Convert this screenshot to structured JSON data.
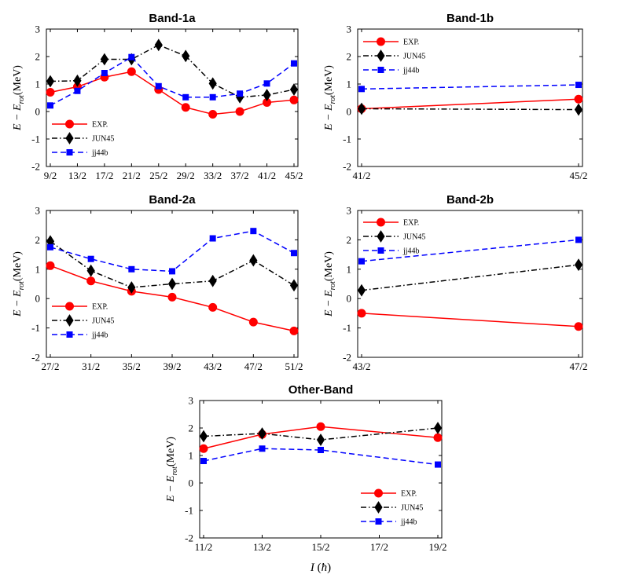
{
  "colors": {
    "exp": "#ff0000",
    "jun45": "#000000",
    "jj44b": "#0000ff"
  },
  "legend": {
    "exp": "EXP.",
    "jun45": "JUN45",
    "jj44b": "jj44b"
  },
  "y_axis_label": "E − E_rot (MeV)",
  "x_axis_label": "I (ħ)",
  "chart_data": [
    {
      "id": "band1a",
      "type": "line",
      "title": "Band-1a",
      "categories": [
        "9/2",
        "13/2",
        "17/2",
        "21/2",
        "25/2",
        "29/2",
        "33/2",
        "37/2",
        "41/2",
        "45/2"
      ],
      "ylim": [
        -2,
        3
      ],
      "yticks": [
        -2,
        -1,
        0,
        1,
        2,
        3
      ],
      "series": [
        {
          "name": "EXP.",
          "values": [
            0.7,
            0.9,
            1.25,
            1.45,
            0.8,
            0.15,
            -0.1,
            0.0,
            0.33,
            0.42
          ]
        },
        {
          "name": "JUN45",
          "values": [
            1.1,
            1.12,
            1.9,
            1.9,
            2.42,
            2.02,
            1.02,
            0.52,
            0.6,
            0.8
          ]
        },
        {
          "name": "jj44b",
          "values": [
            0.22,
            0.75,
            1.4,
            1.98,
            0.92,
            0.52,
            0.52,
            0.65,
            1.02,
            1.75
          ]
        }
      ],
      "legend_position": "bottom-left"
    },
    {
      "id": "band1b",
      "type": "line",
      "title": "Band-1b",
      "categories": [
        "41/2",
        "45/2"
      ],
      "ylim": [
        -2,
        3
      ],
      "yticks": [
        -2,
        -1,
        0,
        1,
        2,
        3
      ],
      "series": [
        {
          "name": "EXP.",
          "values": [
            0.1,
            0.45
          ]
        },
        {
          "name": "JUN45",
          "values": [
            0.1,
            0.07
          ]
        },
        {
          "name": "jj44b",
          "values": [
            0.82,
            0.97
          ]
        }
      ],
      "legend_position": "top-left"
    },
    {
      "id": "band2a",
      "type": "line",
      "title": "Band-2a",
      "categories": [
        "27/2",
        "31/2",
        "35/2",
        "39/2",
        "43/2",
        "47/2",
        "51/2"
      ],
      "ylim": [
        -2,
        3
      ],
      "yticks": [
        -2,
        -1,
        0,
        1,
        2,
        3
      ],
      "series": [
        {
          "name": "EXP.",
          "values": [
            1.12,
            0.6,
            0.25,
            0.05,
            -0.3,
            -0.8,
            -1.1
          ]
        },
        {
          "name": "JUN45",
          "values": [
            1.95,
            0.95,
            0.38,
            0.5,
            0.6,
            1.3,
            0.45
          ]
        },
        {
          "name": "jj44b",
          "values": [
            1.75,
            1.35,
            1.0,
            0.93,
            2.05,
            2.3,
            1.55
          ]
        }
      ],
      "legend_position": "bottom-left"
    },
    {
      "id": "band2b",
      "type": "line",
      "title": "Band-2b",
      "categories": [
        "43/2",
        "47/2"
      ],
      "ylim": [
        -2,
        3
      ],
      "yticks": [
        -2,
        -1,
        0,
        1,
        2,
        3
      ],
      "series": [
        {
          "name": "EXP.",
          "values": [
            -0.5,
            -0.95
          ]
        },
        {
          "name": "JUN45",
          "values": [
            0.28,
            1.15
          ]
        },
        {
          "name": "jj44b",
          "values": [
            1.27,
            2.0
          ]
        }
      ],
      "legend_position": "top-left"
    },
    {
      "id": "other",
      "type": "line",
      "title": "Other-Band",
      "categories": [
        "11/2",
        "13/2",
        "15/2",
        "17/2",
        "19/2"
      ],
      "ylim": [
        -2,
        3
      ],
      "yticks": [
        -2,
        -1,
        0,
        1,
        2,
        3
      ],
      "series": [
        {
          "name": "EXP.",
          "values": [
            1.25,
            1.77,
            2.05,
            null,
            1.65
          ]
        },
        {
          "name": "JUN45",
          "values": [
            1.7,
            1.8,
            1.57,
            null,
            2.0
          ]
        },
        {
          "name": "jj44b",
          "values": [
            0.8,
            1.25,
            1.2,
            null,
            0.67
          ]
        }
      ],
      "legend_position": "bottom-right"
    }
  ]
}
